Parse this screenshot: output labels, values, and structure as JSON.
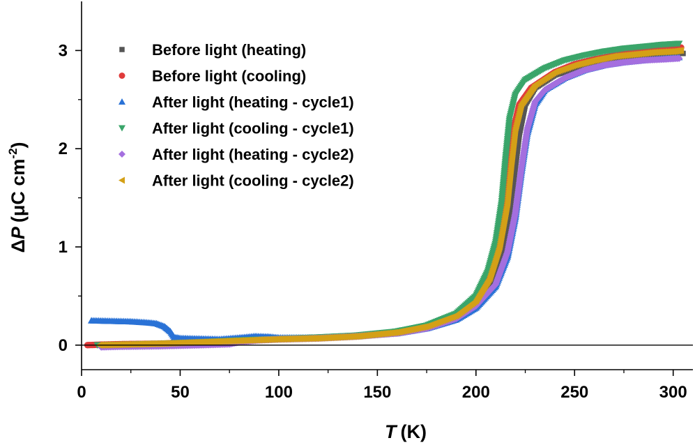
{
  "chart_data": {
    "type": "scatter",
    "xlim": [
      0,
      310
    ],
    "ylim": [
      -0.25,
      3.5
    ],
    "x_ticks": [
      0,
      50,
      100,
      150,
      200,
      250,
      300
    ],
    "y_ticks": [
      0,
      1,
      2,
      3
    ],
    "x_tick_labels": [
      "0",
      "50",
      "100",
      "150",
      "200",
      "250",
      "300"
    ],
    "y_tick_labels": [
      "0",
      "1",
      "2",
      "3"
    ],
    "xlabel": {
      "symbol": "T",
      "unit": "(K)"
    },
    "ylabel": {
      "prefix": "Δ",
      "symbol": "P",
      "unit_open": "(μC cm",
      "unit_exp": "-2",
      "unit_close": ")"
    },
    "reference_line_y": 0,
    "legend_position": "upper-left",
    "series": [
      {
        "name": "Before light (heating)",
        "color": "#555555",
        "marker": "square",
        "points": [
          [
            4,
            0.0
          ],
          [
            10,
            0.005
          ],
          [
            20,
            0.01
          ],
          [
            40,
            0.015
          ],
          [
            60,
            0.03
          ],
          [
            80,
            0.045
          ],
          [
            100,
            0.06
          ],
          [
            120,
            0.07
          ],
          [
            140,
            0.09
          ],
          [
            160,
            0.13
          ],
          [
            175,
            0.18
          ],
          [
            190,
            0.28
          ],
          [
            200,
            0.42
          ],
          [
            207,
            0.6
          ],
          [
            212,
            0.85
          ],
          [
            216,
            1.2
          ],
          [
            219,
            1.65
          ],
          [
            222,
            2.15
          ],
          [
            225,
            2.45
          ],
          [
            230,
            2.62
          ],
          [
            240,
            2.75
          ],
          [
            250,
            2.82
          ],
          [
            260,
            2.87
          ],
          [
            270,
            2.91
          ],
          [
            280,
            2.94
          ],
          [
            290,
            2.96
          ],
          [
            300,
            2.98
          ],
          [
            305,
            2.97
          ]
        ]
      },
      {
        "name": "Before light (cooling)",
        "color": "#e03b3b",
        "marker": "circle",
        "points": [
          [
            3,
            0.0
          ],
          [
            10,
            0.005
          ],
          [
            20,
            0.01
          ],
          [
            40,
            0.015
          ],
          [
            60,
            0.03
          ],
          [
            80,
            0.045
          ],
          [
            100,
            0.06
          ],
          [
            120,
            0.07
          ],
          [
            140,
            0.09
          ],
          [
            160,
            0.13
          ],
          [
            175,
            0.18
          ],
          [
            190,
            0.3
          ],
          [
            200,
            0.45
          ],
          [
            207,
            0.7
          ],
          [
            212,
            1.0
          ],
          [
            215,
            1.4
          ],
          [
            217,
            1.8
          ],
          [
            219,
            2.2
          ],
          [
            222,
            2.45
          ],
          [
            228,
            2.62
          ],
          [
            240,
            2.78
          ],
          [
            250,
            2.86
          ],
          [
            260,
            2.91
          ],
          [
            270,
            2.95
          ],
          [
            280,
            2.98
          ],
          [
            290,
            3.0
          ],
          [
            300,
            3.02
          ],
          [
            304,
            3.03
          ]
        ]
      },
      {
        "name": "After light (heating - cycle1)",
        "color": "#2a72d6",
        "marker": "triangle-up",
        "points": [
          [
            5,
            0.25
          ],
          [
            15,
            0.245
          ],
          [
            25,
            0.24
          ],
          [
            33,
            0.23
          ],
          [
            38,
            0.22
          ],
          [
            42,
            0.19
          ],
          [
            45,
            0.14
          ],
          [
            47,
            0.08
          ],
          [
            50,
            0.07
          ],
          [
            60,
            0.065
          ],
          [
            70,
            0.06
          ],
          [
            80,
            0.075
          ],
          [
            88,
            0.09
          ],
          [
            95,
            0.085
          ],
          [
            100,
            0.075
          ],
          [
            120,
            0.075
          ],
          [
            140,
            0.09
          ],
          [
            160,
            0.12
          ],
          [
            175,
            0.17
          ],
          [
            190,
            0.26
          ],
          [
            200,
            0.38
          ],
          [
            210,
            0.6
          ],
          [
            216,
            0.9
          ],
          [
            220,
            1.3
          ],
          [
            223,
            1.75
          ],
          [
            226,
            2.15
          ],
          [
            230,
            2.45
          ],
          [
            235,
            2.6
          ],
          [
            245,
            2.72
          ],
          [
            255,
            2.8
          ],
          [
            265,
            2.85
          ],
          [
            275,
            2.88
          ],
          [
            285,
            2.9
          ],
          [
            295,
            2.92
          ],
          [
            303,
            2.93
          ]
        ]
      },
      {
        "name": "After light (cooling - cycle1)",
        "color": "#3aa56a",
        "marker": "triangle-down",
        "points": [
          [
            8,
            0.0
          ],
          [
            20,
            0.005
          ],
          [
            40,
            0.015
          ],
          [
            60,
            0.03
          ],
          [
            80,
            0.05
          ],
          [
            100,
            0.065
          ],
          [
            120,
            0.08
          ],
          [
            140,
            0.1
          ],
          [
            160,
            0.14
          ],
          [
            175,
            0.2
          ],
          [
            190,
            0.32
          ],
          [
            200,
            0.5
          ],
          [
            206,
            0.75
          ],
          [
            210,
            1.05
          ],
          [
            213,
            1.45
          ],
          [
            215,
            1.9
          ],
          [
            217,
            2.3
          ],
          [
            220,
            2.55
          ],
          [
            225,
            2.7
          ],
          [
            235,
            2.82
          ],
          [
            245,
            2.9
          ],
          [
            255,
            2.95
          ],
          [
            265,
            2.99
          ],
          [
            275,
            3.02
          ],
          [
            285,
            3.04
          ],
          [
            295,
            3.06
          ],
          [
            303,
            3.07
          ]
        ]
      },
      {
        "name": "After light (heating - cycle2)",
        "color": "#a46fdf",
        "marker": "diamond",
        "points": [
          [
            10,
            -0.02
          ],
          [
            20,
            -0.015
          ],
          [
            40,
            -0.01
          ],
          [
            60,
            0.0
          ],
          [
            75,
            0.01
          ],
          [
            80,
            0.03
          ],
          [
            90,
            0.05
          ],
          [
            100,
            0.06
          ],
          [
            120,
            0.07
          ],
          [
            140,
            0.09
          ],
          [
            160,
            0.12
          ],
          [
            175,
            0.17
          ],
          [
            190,
            0.27
          ],
          [
            200,
            0.4
          ],
          [
            210,
            0.62
          ],
          [
            216,
            0.95
          ],
          [
            220,
            1.35
          ],
          [
            223,
            1.8
          ],
          [
            226,
            2.2
          ],
          [
            230,
            2.48
          ],
          [
            235,
            2.6
          ],
          [
            245,
            2.72
          ],
          [
            255,
            2.8
          ],
          [
            265,
            2.85
          ],
          [
            275,
            2.88
          ],
          [
            285,
            2.9
          ],
          [
            295,
            2.91
          ],
          [
            303,
            2.92
          ]
        ]
      },
      {
        "name": "After light (cooling - cycle2)",
        "color": "#d4a017",
        "marker": "triangle-left",
        "points": [
          [
            9,
            0.0
          ],
          [
            20,
            0.005
          ],
          [
            40,
            0.015
          ],
          [
            60,
            0.03
          ],
          [
            80,
            0.045
          ],
          [
            100,
            0.06
          ],
          [
            120,
            0.07
          ],
          [
            140,
            0.09
          ],
          [
            160,
            0.13
          ],
          [
            175,
            0.19
          ],
          [
            190,
            0.3
          ],
          [
            200,
            0.45
          ],
          [
            207,
            0.68
          ],
          [
            212,
            1.0
          ],
          [
            216,
            1.45
          ],
          [
            218,
            1.85
          ],
          [
            220,
            2.2
          ],
          [
            223,
            2.45
          ],
          [
            230,
            2.65
          ],
          [
            240,
            2.78
          ],
          [
            250,
            2.85
          ],
          [
            260,
            2.9
          ],
          [
            270,
            2.94
          ],
          [
            280,
            2.96
          ],
          [
            290,
            2.98
          ],
          [
            300,
            2.99
          ],
          [
            304,
            3.0
          ]
        ]
      }
    ]
  }
}
